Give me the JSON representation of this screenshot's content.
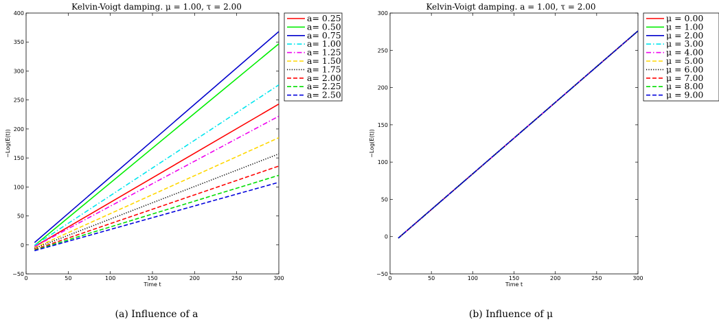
{
  "chart_data": [
    {
      "type": "line",
      "title": "Kelvin-Voigt damping. μ = 1.00, τ = 2.00",
      "xlabel": "Time t",
      "ylabel": "−Log(E(t))",
      "xlim": [
        0,
        300
      ],
      "ylim": [
        -50,
        400
      ],
      "xticks": [
        "0",
        "50",
        "100",
        "150",
        "200",
        "250",
        "300"
      ],
      "yticks": [
        "−50",
        "0",
        "50",
        "100",
        "150",
        "200",
        "250",
        "300",
        "350",
        "400"
      ],
      "grid": false,
      "legend_position": "top-right",
      "caption": "(a) Influence of a",
      "series": [
        {
          "name": "a= 0.25",
          "color": "#ff0000",
          "dash": "solid",
          "x": [
            10,
            300
          ],
          "y": [
            -3,
            243
          ]
        },
        {
          "name": "a= 0.50",
          "color": "#00ee00",
          "dash": "solid",
          "x": [
            10,
            300
          ],
          "y": [
            -1,
            347
          ]
        },
        {
          "name": "a= 0.75",
          "color": "#0000cc",
          "dash": "solid",
          "x": [
            10,
            300
          ],
          "y": [
            4,
            368
          ]
        },
        {
          "name": "a= 1.00",
          "color": "#00e5ee",
          "dash": "dashdot",
          "x": [
            10,
            300
          ],
          "y": [
            -1,
            276
          ]
        },
        {
          "name": "a= 1.25",
          "color": "#ee00ee",
          "dash": "dashdot",
          "x": [
            10,
            300
          ],
          "y": [
            -3,
            222
          ]
        },
        {
          "name": "a= 1.50",
          "color": "#ffd700",
          "dash": "dashed",
          "x": [
            10,
            300
          ],
          "y": [
            -5,
            185
          ]
        },
        {
          "name": "a= 1.75",
          "color": "#000000",
          "dash": "dotted",
          "x": [
            10,
            300
          ],
          "y": [
            -6,
            157
          ]
        },
        {
          "name": "a= 2.00",
          "color": "#ff0000",
          "dash": "dashed",
          "x": [
            10,
            300
          ],
          "y": [
            -8,
            136
          ]
        },
        {
          "name": "a= 2.25",
          "color": "#00dd00",
          "dash": "dashed",
          "x": [
            10,
            300
          ],
          "y": [
            -9,
            120
          ]
        },
        {
          "name": "a= 2.50",
          "color": "#0000dd",
          "dash": "dashed",
          "x": [
            10,
            300
          ],
          "y": [
            -10,
            108
          ]
        }
      ]
    },
    {
      "type": "line",
      "title": "Kelvin-Voigt damping. a = 1.00, τ = 2.00",
      "xlabel": "Time t",
      "ylabel": "−Log(E(t))",
      "xlim": [
        0,
        300
      ],
      "ylim": [
        -50,
        300
      ],
      "xticks": [
        "0",
        "50",
        "100",
        "150",
        "200",
        "250",
        "300"
      ],
      "yticks": [
        "−50",
        "0",
        "50",
        "100",
        "150",
        "200",
        "250",
        "300"
      ],
      "grid": false,
      "legend_position": "top-right",
      "caption": "(b) Influence of μ",
      "series": [
        {
          "name": "μ = 0.00",
          "color": "#ff0000",
          "dash": "solid",
          "x": [
            10,
            300
          ],
          "y": [
            -2,
            276
          ]
        },
        {
          "name": "μ = 1.00",
          "color": "#00ee00",
          "dash": "solid",
          "x": [
            10,
            300
          ],
          "y": [
            -2,
            276
          ]
        },
        {
          "name": "μ = 2.00",
          "color": "#0000cc",
          "dash": "solid",
          "x": [
            10,
            300
          ],
          "y": [
            -2,
            276
          ]
        },
        {
          "name": "μ = 3.00",
          "color": "#00e5ee",
          "dash": "dashdot",
          "x": [
            10,
            300
          ],
          "y": [
            -2,
            276
          ]
        },
        {
          "name": "μ = 4.00",
          "color": "#ee00ee",
          "dash": "dashdot",
          "x": [
            10,
            300
          ],
          "y": [
            -2,
            276
          ]
        },
        {
          "name": "μ = 5.00",
          "color": "#ffd700",
          "dash": "dashed",
          "x": [
            10,
            300
          ],
          "y": [
            -2,
            276
          ]
        },
        {
          "name": "μ = 6.00",
          "color": "#000000",
          "dash": "dotted",
          "x": [
            10,
            300
          ],
          "y": [
            -2,
            276
          ]
        },
        {
          "name": "μ = 7.00",
          "color": "#ff0000",
          "dash": "dashed",
          "x": [
            10,
            300
          ],
          "y": [
            -2,
            276
          ]
        },
        {
          "name": "μ = 8.00",
          "color": "#00dd00",
          "dash": "dashed",
          "x": [
            10,
            300
          ],
          "y": [
            -2,
            276
          ]
        },
        {
          "name": "μ = 9.00",
          "color": "#0000dd",
          "dash": "dashed",
          "x": [
            10,
            300
          ],
          "y": [
            -2,
            276
          ]
        }
      ]
    }
  ]
}
